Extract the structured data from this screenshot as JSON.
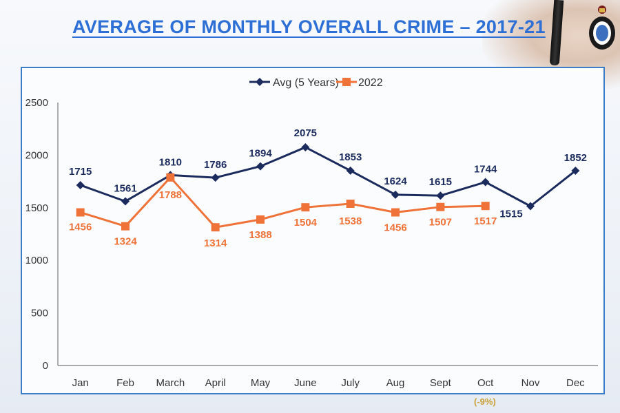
{
  "title": "AVERAGE OF MONTHLY OVERALL CRIME – 2017-21",
  "footnote": "(-9%)",
  "colors": {
    "avg": "#1c2b5e",
    "y2022": "#ef7238",
    "title": "#2e6fd6",
    "frame": "#3b7cc9",
    "footnote": "#c8a03a"
  },
  "icons": [
    "police-badge-icon",
    "pen-hand-photo"
  ],
  "chart_data": {
    "type": "line",
    "categories": [
      "Jan",
      "Feb",
      "March",
      "April",
      "May",
      "June",
      "July",
      "Aug",
      "Sept",
      "Oct",
      "Nov",
      "Dec"
    ],
    "series": [
      {
        "name": "Avg (5 Years)",
        "values": [
          1715,
          1561,
          1810,
          1786,
          1894,
          2075,
          1853,
          1624,
          1615,
          1744,
          1515,
          1852
        ],
        "labels": [
          "1715",
          "1561",
          "1810",
          "1786",
          "1894",
          "2075",
          "1853",
          "1624",
          "1615",
          "1744",
          "",
          ""
        ]
      },
      {
        "name": "2022",
        "values": [
          1456,
          1324,
          1788,
          1314,
          1388,
          1504,
          1538,
          1456,
          1507,
          1517,
          null,
          null
        ],
        "labels": [
          "1456",
          "1324",
          "1788",
          "1314",
          "1388",
          "1504",
          "1538",
          "1456",
          "1507",
          "1517",
          "",
          ""
        ]
      }
    ],
    "extra_labels": [
      "1515",
      "1852"
    ],
    "yticks": [
      "0",
      "500",
      "1000",
      "1500",
      "2000",
      "2500"
    ],
    "ylim": [
      0,
      2500
    ],
    "legend_position": "top-center",
    "grid": false
  }
}
